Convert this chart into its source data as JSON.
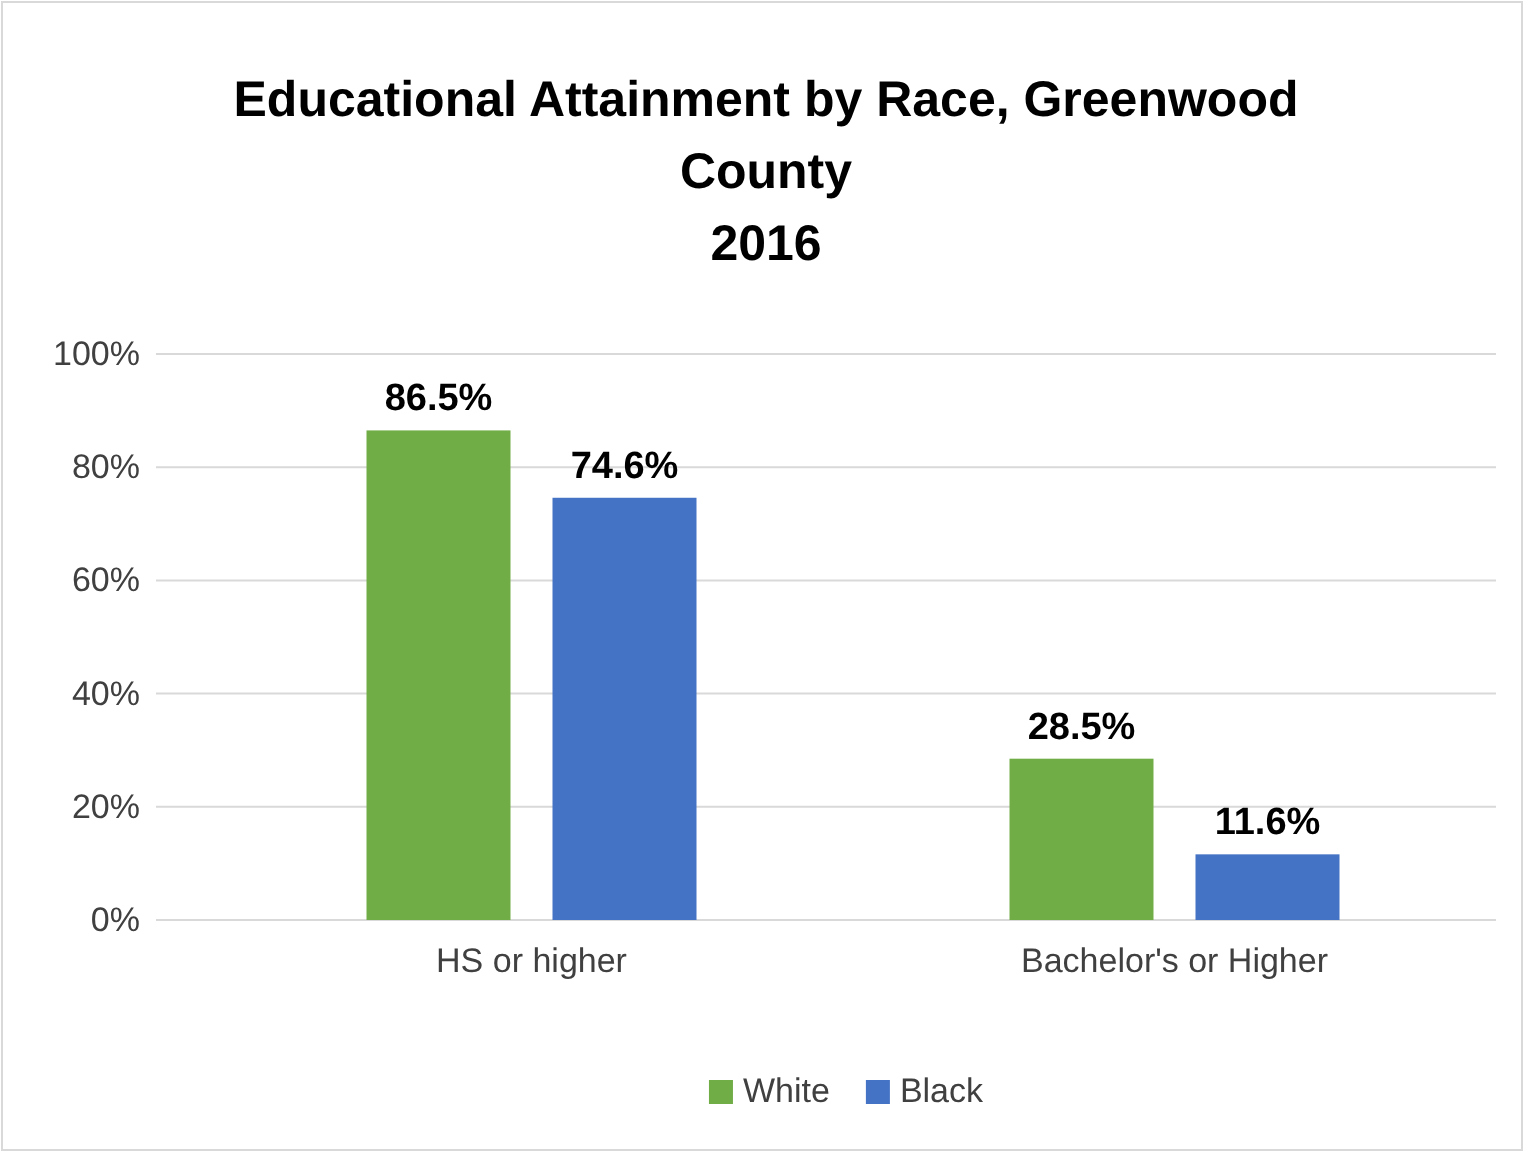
{
  "chart_data": {
    "type": "bar",
    "title": "Educational Attainment by Race, Greenwood County\n2016",
    "categories": [
      "HS or higher",
      "Bachelor's or Higher"
    ],
    "series": [
      {
        "name": "White",
        "color": "#70ad47",
        "values": [
          86.5,
          28.5
        ],
        "value_labels": [
          "86.5%",
          "28.5%"
        ]
      },
      {
        "name": "Black",
        "color": "#4472c4",
        "values": [
          74.6,
          11.6
        ],
        "value_labels": [
          "74.6%",
          "11.6%"
        ]
      }
    ],
    "ylim": [
      0,
      100
    ],
    "yticks": [
      {
        "value": 0,
        "label": "0%"
      },
      {
        "value": 20,
        "label": "20%"
      },
      {
        "value": 40,
        "label": "40%"
      },
      {
        "value": 60,
        "label": "60%"
      },
      {
        "value": 80,
        "label": "80%"
      },
      {
        "value": 100,
        "label": "100%"
      }
    ],
    "grid": "y",
    "legend": "bottom"
  }
}
